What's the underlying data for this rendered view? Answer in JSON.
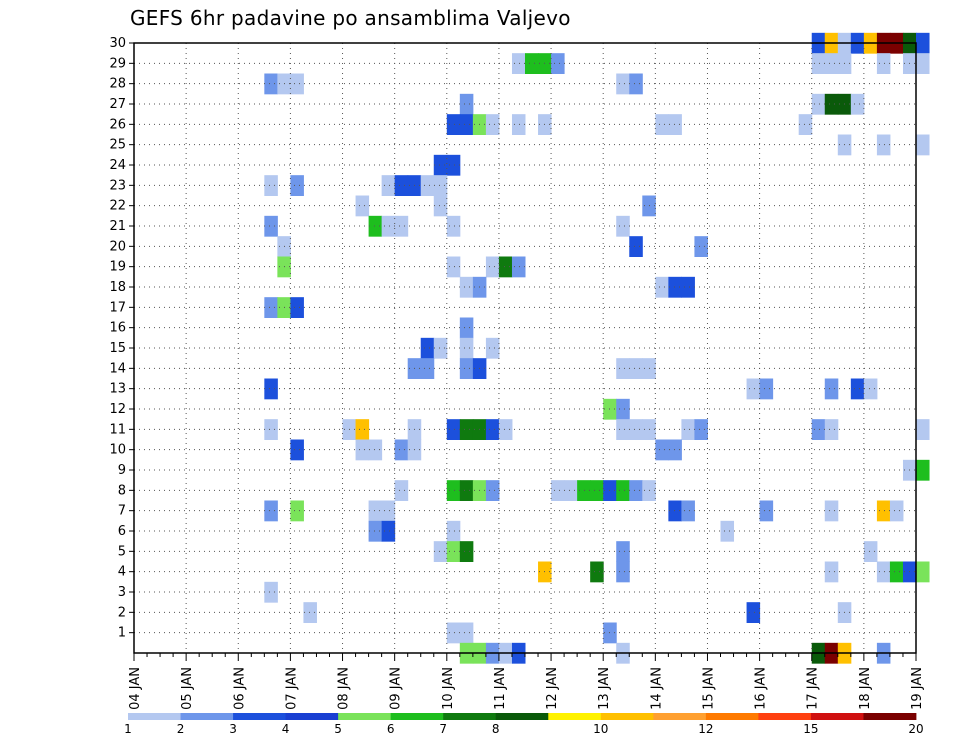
{
  "chart_data": {
    "type": "heatmap",
    "title": "GEFS 6hr padavine po ansamblima Valjevo",
    "x_tick_labels": [
      "04 JAN",
      "05 JAN",
      "06 JAN",
      "07 JAN",
      "08 JAN",
      "09 JAN",
      "10 JAN",
      "11 JAN",
      "12 JAN",
      "13 JAN",
      "14 JAN",
      "15 JAN",
      "16 JAN",
      "17 JAN",
      "18 JAN",
      "19 JAN"
    ],
    "y_tick_labels": [
      "1",
      "2",
      "3",
      "4",
      "5",
      "6",
      "7",
      "8",
      "9",
      "10",
      "11",
      "12",
      "13",
      "14",
      "15",
      "16",
      "17",
      "18",
      "19",
      "20",
      "21",
      "22",
      "23",
      "24",
      "25",
      "26",
      "27",
      "28",
      "29",
      "30"
    ],
    "x_unit": "6-hour step from 04 JAN 00Z",
    "xlim": [
      0,
      60
    ],
    "ylim": [
      0,
      30
    ],
    "grid": true,
    "legend_placement": "bottom",
    "colorbar": {
      "colors": [
        "#b4c8f0",
        "#6e96ea",
        "#1c50dc",
        "#1a3fd2",
        "#7ae35a",
        "#1ebe1e",
        "#0f7a0f",
        "#0a5a0a",
        "#fff200",
        "#ffc000",
        "#ffa030",
        "#ff7a00",
        "#ff4010",
        "#d01010",
        "#7a0000"
      ],
      "labels": [
        "1",
        "2",
        "3",
        "4",
        "5",
        "6",
        "7",
        "8",
        "10",
        "12",
        "15",
        "20"
      ]
    },
    "cells": [
      [
        52,
        30,
        3
      ],
      [
        53,
        30,
        10
      ],
      [
        54,
        30,
        1
      ],
      [
        55,
        30,
        3
      ],
      [
        56,
        30,
        10
      ],
      [
        57,
        30,
        15
      ],
      [
        58,
        30,
        15
      ],
      [
        59,
        30,
        8
      ],
      [
        60,
        30,
        3
      ],
      [
        29,
        29,
        1
      ],
      [
        30,
        29,
        6
      ],
      [
        31,
        29,
        6
      ],
      [
        32,
        29,
        2
      ],
      [
        52,
        29,
        1
      ],
      [
        53,
        29,
        1
      ],
      [
        54,
        29,
        1
      ],
      [
        57,
        29,
        1
      ],
      [
        59,
        29,
        1
      ],
      [
        60,
        29,
        1
      ],
      [
        10,
        28,
        2
      ],
      [
        11,
        28,
        1
      ],
      [
        12,
        28,
        1
      ],
      [
        37,
        28,
        1
      ],
      [
        38,
        28,
        2
      ],
      [
        25,
        27,
        2
      ],
      [
        52,
        27,
        1
      ],
      [
        53,
        27,
        8
      ],
      [
        54,
        27,
        8
      ],
      [
        55,
        27,
        1
      ],
      [
        24,
        26,
        3
      ],
      [
        25,
        26,
        3
      ],
      [
        26,
        26,
        5
      ],
      [
        27,
        26,
        1
      ],
      [
        29,
        26,
        1
      ],
      [
        31,
        26,
        1
      ],
      [
        40,
        26,
        1
      ],
      [
        41,
        26,
        1
      ],
      [
        51,
        26,
        1
      ],
      [
        54,
        25,
        1
      ],
      [
        57,
        25,
        1
      ],
      [
        60,
        25,
        1
      ],
      [
        23,
        24,
        3
      ],
      [
        24,
        24,
        3
      ],
      [
        10,
        23,
        1
      ],
      [
        12,
        23,
        2
      ],
      [
        19,
        23,
        1
      ],
      [
        20,
        23,
        3
      ],
      [
        21,
        23,
        3
      ],
      [
        22,
        23,
        1
      ],
      [
        23,
        23,
        1
      ],
      [
        17,
        22,
        1
      ],
      [
        23,
        22,
        1
      ],
      [
        39,
        22,
        2
      ],
      [
        10,
        21,
        2
      ],
      [
        18,
        21,
        6
      ],
      [
        19,
        21,
        1
      ],
      [
        20,
        21,
        1
      ],
      [
        24,
        21,
        1
      ],
      [
        37,
        21,
        1
      ],
      [
        11,
        20,
        1
      ],
      [
        38,
        20,
        3
      ],
      [
        43,
        20,
        2
      ],
      [
        11,
        19,
        5
      ],
      [
        24,
        19,
        1
      ],
      [
        27,
        19,
        1
      ],
      [
        28,
        19,
        7
      ],
      [
        29,
        19,
        2
      ],
      [
        25,
        18,
        1
      ],
      [
        26,
        18,
        2
      ],
      [
        40,
        18,
        1
      ],
      [
        41,
        18,
        3
      ],
      [
        42,
        18,
        3
      ],
      [
        10,
        17,
        2
      ],
      [
        11,
        17,
        5
      ],
      [
        12,
        17,
        3
      ],
      [
        25,
        16,
        2
      ],
      [
        22,
        15,
        3
      ],
      [
        23,
        15,
        1
      ],
      [
        25,
        15,
        1
      ],
      [
        27,
        15,
        1
      ],
      [
        21,
        14,
        2
      ],
      [
        22,
        14,
        2
      ],
      [
        25,
        14,
        2
      ],
      [
        26,
        14,
        3
      ],
      [
        37,
        14,
        1
      ],
      [
        38,
        14,
        1
      ],
      [
        39,
        14,
        1
      ],
      [
        10,
        13,
        3
      ],
      [
        47,
        13,
        1
      ],
      [
        48,
        13,
        2
      ],
      [
        53,
        13,
        2
      ],
      [
        55,
        13,
        3
      ],
      [
        56,
        13,
        1
      ],
      [
        36,
        12,
        5
      ],
      [
        37,
        12,
        2
      ],
      [
        10,
        11,
        1
      ],
      [
        16,
        11,
        1
      ],
      [
        17,
        11,
        10
      ],
      [
        21,
        11,
        1
      ],
      [
        24,
        11,
        3
      ],
      [
        25,
        11,
        7
      ],
      [
        26,
        11,
        7
      ],
      [
        27,
        11,
        3
      ],
      [
        28,
        11,
        1
      ],
      [
        37,
        11,
        1
      ],
      [
        38,
        11,
        1
      ],
      [
        39,
        11,
        1
      ],
      [
        42,
        11,
        1
      ],
      [
        43,
        11,
        2
      ],
      [
        52,
        11,
        2
      ],
      [
        53,
        11,
        1
      ],
      [
        60,
        11,
        1
      ],
      [
        12,
        10,
        3
      ],
      [
        17,
        10,
        1
      ],
      [
        18,
        10,
        1
      ],
      [
        20,
        10,
        2
      ],
      [
        21,
        10,
        1
      ],
      [
        40,
        10,
        2
      ],
      [
        41,
        10,
        2
      ],
      [
        59,
        9,
        1
      ],
      [
        60,
        9,
        6
      ],
      [
        20,
        8,
        1
      ],
      [
        24,
        8,
        6
      ],
      [
        25,
        8,
        7
      ],
      [
        26,
        8,
        5
      ],
      [
        27,
        8,
        2
      ],
      [
        32,
        8,
        1
      ],
      [
        33,
        8,
        1
      ],
      [
        34,
        8,
        6
      ],
      [
        35,
        8,
        6
      ],
      [
        36,
        8,
        3
      ],
      [
        37,
        8,
        6
      ],
      [
        38,
        8,
        2
      ],
      [
        39,
        8,
        1
      ],
      [
        10,
        7,
        2
      ],
      [
        12,
        7,
        5
      ],
      [
        18,
        7,
        1
      ],
      [
        19,
        7,
        1
      ],
      [
        41,
        7,
        3
      ],
      [
        42,
        7,
        2
      ],
      [
        48,
        7,
        2
      ],
      [
        53,
        7,
        1
      ],
      [
        57,
        7,
        10
      ],
      [
        58,
        7,
        1
      ],
      [
        18,
        6,
        2
      ],
      [
        19,
        6,
        3
      ],
      [
        24,
        6,
        1
      ],
      [
        45,
        6,
        1
      ],
      [
        23,
        5,
        1
      ],
      [
        24,
        5,
        5
      ],
      [
        25,
        5,
        7
      ],
      [
        37,
        5,
        2
      ],
      [
        56,
        5,
        1
      ],
      [
        31,
        4,
        10
      ],
      [
        35,
        4,
        7
      ],
      [
        37,
        4,
        2
      ],
      [
        53,
        4,
        1
      ],
      [
        57,
        4,
        1
      ],
      [
        58,
        4,
        6
      ],
      [
        59,
        4,
        3
      ],
      [
        60,
        4,
        5
      ],
      [
        10,
        3,
        1
      ],
      [
        13,
        2,
        1
      ],
      [
        47,
        2,
        3
      ],
      [
        54,
        2,
        1
      ],
      [
        24,
        1,
        1
      ],
      [
        25,
        1,
        1
      ],
      [
        36,
        1,
        2
      ],
      [
        25,
        0,
        5
      ],
      [
        26,
        0,
        5
      ],
      [
        27,
        0,
        2
      ],
      [
        28,
        0,
        1
      ],
      [
        29,
        0,
        3
      ],
      [
        37,
        0,
        1
      ],
      [
        52,
        0,
        8
      ],
      [
        53,
        0,
        15
      ],
      [
        54,
        0,
        10
      ],
      [
        57,
        0,
        2
      ]
    ]
  }
}
